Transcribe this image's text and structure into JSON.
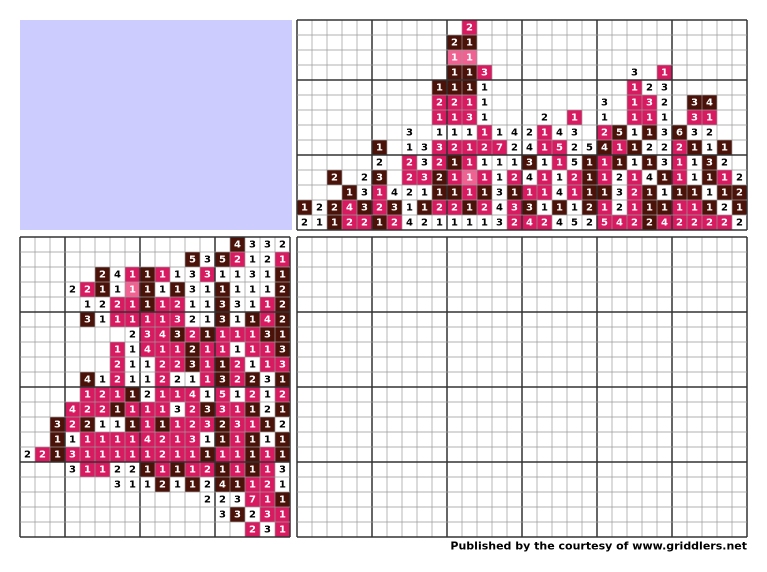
{
  "palette": {
    "d": "#4a1208",
    "m": "#d81b60",
    "l": "#f06292",
    "w": "#ffffff"
  },
  "top_clues": {
    "values": [
      [
        null,
        null,
        null,
        null,
        null,
        null,
        null,
        null,
        null,
        null,
        null,
        2,
        null,
        null,
        null,
        null,
        null,
        null,
        null,
        null,
        null,
        null,
        null,
        null,
        null,
        null,
        null,
        null,
        null,
        null
      ],
      [
        null,
        null,
        null,
        null,
        null,
        null,
        null,
        null,
        null,
        null,
        2,
        1,
        null,
        null,
        null,
        null,
        null,
        null,
        null,
        null,
        null,
        null,
        null,
        null,
        null,
        null,
        null,
        null,
        null,
        null
      ],
      [
        null,
        null,
        null,
        null,
        null,
        null,
        null,
        null,
        null,
        null,
        1,
        1,
        null,
        null,
        null,
        null,
        null,
        null,
        null,
        null,
        null,
        null,
        null,
        null,
        null,
        null,
        null,
        null,
        null,
        null
      ],
      [
        null,
        null,
        null,
        null,
        null,
        null,
        null,
        null,
        null,
        null,
        1,
        1,
        3,
        null,
        null,
        null,
        null,
        null,
        null,
        null,
        null,
        null,
        3,
        null,
        1,
        null,
        null,
        null,
        null,
        null
      ],
      [
        null,
        null,
        null,
        null,
        null,
        null,
        null,
        null,
        null,
        1,
        1,
        1,
        1,
        null,
        null,
        null,
        null,
        null,
        null,
        null,
        null,
        null,
        1,
        2,
        3,
        null,
        null,
        null,
        null,
        null
      ],
      [
        null,
        null,
        null,
        null,
        null,
        null,
        null,
        null,
        null,
        2,
        2,
        1,
        1,
        null,
        null,
        null,
        null,
        null,
        null,
        null,
        3,
        null,
        1,
        3,
        2,
        null,
        3,
        4,
        null,
        null
      ],
      [
        null,
        null,
        null,
        null,
        null,
        null,
        null,
        null,
        null,
        1,
        1,
        3,
        1,
        null,
        null,
        null,
        2,
        null,
        1,
        null,
        1,
        null,
        1,
        1,
        1,
        null,
        3,
        1,
        null,
        null
      ],
      [
        null,
        null,
        null,
        null,
        null,
        null,
        null,
        3,
        null,
        1,
        1,
        1,
        1,
        1,
        4,
        2,
        1,
        4,
        3,
        null,
        2,
        5,
        1,
        1,
        3,
        6,
        3,
        2,
        null,
        null
      ],
      [
        null,
        null,
        null,
        null,
        null,
        1,
        null,
        1,
        3,
        3,
        2,
        1,
        2,
        7,
        2,
        4,
        1,
        5,
        2,
        5,
        4,
        1,
        1,
        2,
        2,
        2,
        1,
        1,
        1,
        null
      ],
      [
        null,
        null,
        null,
        null,
        null,
        2,
        null,
        2,
        3,
        2,
        1,
        1,
        1,
        1,
        1,
        3,
        1,
        1,
        5,
        1,
        1,
        1,
        1,
        1,
        3,
        1,
        1,
        3,
        2,
        null
      ],
      [
        null,
        null,
        2,
        null,
        2,
        3,
        null,
        2,
        3,
        2,
        1,
        1,
        1,
        1,
        2,
        4,
        1,
        1,
        2,
        1,
        1,
        2,
        1,
        4,
        1,
        1,
        1,
        1,
        1,
        2
      ],
      [
        null,
        null,
        null,
        1,
        3,
        1,
        4,
        2,
        1,
        1,
        1,
        1,
        1,
        3,
        1,
        1,
        1,
        4,
        1,
        1,
        1,
        3,
        2,
        1,
        1,
        1,
        1,
        1,
        1,
        2
      ],
      [
        1,
        2,
        2,
        4,
        3,
        2,
        3,
        1,
        1,
        2,
        2,
        1,
        2,
        4,
        3,
        3,
        1,
        1,
        1,
        2,
        1,
        2,
        1,
        1,
        1,
        1,
        1,
        1,
        2,
        1
      ],
      [
        2,
        1,
        1,
        2,
        2,
        1,
        2,
        4,
        2,
        1,
        1,
        1,
        1,
        3,
        2,
        4,
        2,
        4,
        5,
        2,
        5,
        4,
        2,
        2,
        4,
        2,
        2,
        2,
        2,
        2
      ]
    ],
    "colors": [
      "...........m..................",
      "..........dd..................",
      "..........ll..................",
      "..........ddm.........w.m.....",
      ".........dddw.........mww.....",
      ".........mmmw.......w.mmw.dd..",
      ".........mmmw...w.m.w.mmw.mm..",
      ".......w.wwwmwwwmww.mdwdwdww..",
      ".....d.wwmmmmmwwmmwwdmdwwmdwd.",
      ".....w.mwmdmwwwdwmwdmdwdwmwdw.",
      "..d.wd.mmdmlmwmwmwmdmwmwdmwdmw",
      "...dwmwwwddmdwdmmwmddwmdwddwdd",
      "dwdmdmdwdmmdmwmdwdwdmwmddmmdwd",
      "wwdmmdmwwwwwwwmmmwwwmmmdmmmmmw"
    ]
  },
  "left_clues": {
    "values": [
      [
        4,
        3,
        3,
        2
      ],
      [
        5,
        3,
        5,
        2,
        1,
        2,
        1
      ],
      [
        2,
        4,
        1,
        1,
        1,
        1,
        3,
        3,
        1,
        1,
        3,
        1,
        1
      ],
      [
        2,
        2,
        1,
        1,
        1,
        1,
        1,
        1,
        3,
        1,
        1,
        1,
        1,
        1,
        2
      ],
      [
        1,
        2,
        2,
        1,
        1,
        1,
        2,
        1,
        1,
        3,
        3,
        1,
        1,
        2
      ],
      [
        3,
        1,
        1,
        1,
        1,
        1,
        3,
        2,
        1,
        3,
        1,
        1,
        4,
        2
      ],
      [
        2,
        3,
        4,
        3,
        2,
        1,
        1,
        1,
        1,
        3,
        1
      ],
      [
        1,
        1,
        4,
        1,
        1,
        2,
        1,
        1,
        1,
        1,
        1,
        3
      ],
      [
        2,
        1,
        1,
        2,
        2,
        3,
        1,
        1,
        2,
        1,
        1,
        3
      ],
      [
        4,
        1,
        2,
        1,
        1,
        2,
        2,
        1,
        1,
        3,
        2,
        2,
        3,
        1
      ],
      [
        1,
        2,
        1,
        1,
        2,
        1,
        1,
        4,
        1,
        5,
        1,
        2,
        1,
        2
      ],
      [
        4,
        2,
        2,
        1,
        1,
        1,
        1,
        3,
        2,
        3,
        3,
        1,
        1,
        2,
        1
      ],
      [
        3,
        2,
        2,
        1,
        1,
        1,
        1,
        1,
        1,
        2,
        3,
        2,
        3,
        1,
        1,
        2
      ],
      [
        1,
        1,
        1,
        1,
        1,
        1,
        4,
        2,
        1,
        3,
        1,
        1,
        1,
        1,
        1,
        1
      ],
      [
        2,
        2,
        1,
        3,
        1,
        1,
        1,
        1,
        1,
        2,
        1,
        1,
        1,
        1,
        1,
        1,
        1,
        1
      ],
      [
        3,
        1,
        1,
        2,
        2,
        1,
        1,
        1,
        1,
        2,
        1,
        1,
        1,
        1,
        3
      ],
      [
        3,
        1,
        1,
        2,
        1,
        1,
        2,
        4,
        1,
        1,
        2,
        1
      ],
      [
        2,
        2,
        3,
        7,
        1,
        1
      ],
      [
        3,
        3,
        2,
        3,
        1
      ],
      [
        2,
        3,
        1
      ]
    ],
    "colors": [
      "dwww",
      "dwdmwwm",
      "dwmdmwwmwwwwd",
      "wmdwldwdwwdwwwd",
      "wwmmdmmwwdwwmd",
      "dwmmmmmwwdwdmd",
      "wmmdmdmmmdd",
      "mwmmmdmmwmmd",
      "mwwmmdmdmwmm",
      "dwmwwmwwmdmdwd",
      "mmmdwmmmwmwmwm",
      "mmmdmmmwmdmmdwd",
      "dmdwwdmdmmmdmmdw",
      "dwmmmmmmmmwdmdwd",
      "wmdmmmmmmmmmdmmdmd",
      "wmmwwdmdmmdmdmw",
      "wwwdwdwddmmw",
      "wwwmmd",
      "wdwmm",
      "mwm"
    ]
  },
  "footer": "Published by the courtesy of www.griddlers.net"
}
